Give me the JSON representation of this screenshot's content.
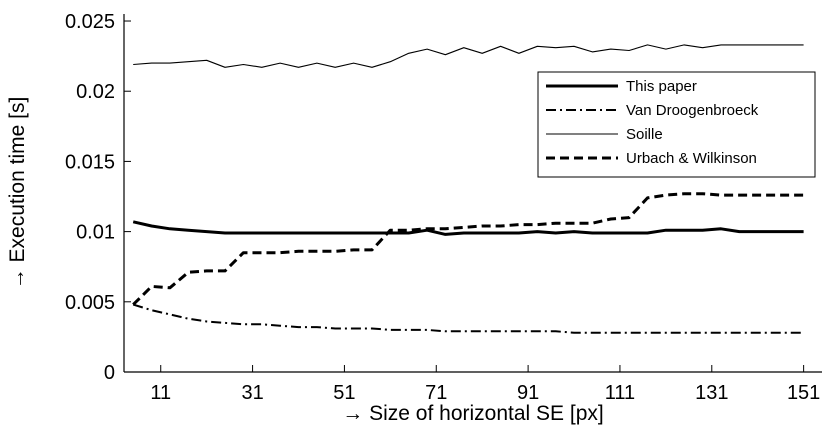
{
  "chart_data": {
    "type": "line",
    "xlabel": "→ Size of horizontal SE [px]",
    "ylabel": "→ Execution time [s]",
    "xlim": [
      3,
      155
    ],
    "ylim": [
      0,
      0.0255
    ],
    "xticks": [
      11,
      31,
      51,
      71,
      91,
      111,
      131,
      151
    ],
    "yticks": [
      0,
      0.005,
      0.01,
      0.015,
      0.02,
      0.025
    ],
    "ytick_labels": [
      "0",
      "0.005",
      "0.01",
      "0.015",
      "0.02",
      "0.025"
    ],
    "grid": false,
    "legend_position": "top-right",
    "x": [
      5,
      9,
      13,
      17,
      21,
      25,
      29,
      33,
      37,
      41,
      45,
      49,
      53,
      57,
      61,
      65,
      69,
      73,
      77,
      81,
      85,
      89,
      93,
      97,
      101,
      105,
      109,
      113,
      117,
      121,
      125,
      129,
      133,
      137,
      141,
      145,
      149,
      151
    ],
    "series": [
      {
        "name": "This paper",
        "style": "solid-thick",
        "values": [
          0.0107,
          0.0104,
          0.0102,
          0.0101,
          0.01,
          0.0099,
          0.0099,
          0.0099,
          0.0099,
          0.0099,
          0.0099,
          0.0099,
          0.0099,
          0.0099,
          0.0099,
          0.0099,
          0.0101,
          0.0098,
          0.0099,
          0.0099,
          0.0099,
          0.0099,
          0.01,
          0.0099,
          0.01,
          0.0099,
          0.0099,
          0.0099,
          0.0099,
          0.0101,
          0.0101,
          0.0101,
          0.0102,
          0.01,
          0.01,
          0.01,
          0.01,
          0.01
        ]
      },
      {
        "name": "Van Droogenbroeck",
        "style": "dashdot",
        "values": [
          0.0048,
          0.0044,
          0.0041,
          0.0038,
          0.0036,
          0.0035,
          0.0034,
          0.0034,
          0.0033,
          0.0032,
          0.0032,
          0.0031,
          0.0031,
          0.0031,
          0.003,
          0.003,
          0.003,
          0.0029,
          0.0029,
          0.0029,
          0.0029,
          0.0029,
          0.0029,
          0.0029,
          0.0028,
          0.0028,
          0.0028,
          0.0028,
          0.0028,
          0.0028,
          0.0028,
          0.0028,
          0.0028,
          0.0028,
          0.0028,
          0.0028,
          0.0028,
          0.0028
        ]
      },
      {
        "name": "Soille",
        "style": "solid-thin",
        "values": [
          0.0219,
          0.022,
          0.022,
          0.0221,
          0.0222,
          0.0217,
          0.0219,
          0.0217,
          0.022,
          0.0217,
          0.022,
          0.0217,
          0.022,
          0.0217,
          0.0221,
          0.0227,
          0.023,
          0.0226,
          0.0231,
          0.0227,
          0.0232,
          0.0227,
          0.0232,
          0.0231,
          0.0232,
          0.0228,
          0.023,
          0.0229,
          0.0233,
          0.023,
          0.0233,
          0.0231,
          0.0233,
          0.0233,
          0.0233,
          0.0233,
          0.0233,
          0.0233
        ]
      },
      {
        "name": "Urbach & Wilkinson",
        "style": "dashed",
        "values": [
          0.0048,
          0.0061,
          0.006,
          0.0071,
          0.0072,
          0.0072,
          0.0085,
          0.0085,
          0.0085,
          0.0086,
          0.0086,
          0.0086,
          0.0087,
          0.0087,
          0.0101,
          0.0101,
          0.0102,
          0.0102,
          0.0103,
          0.0104,
          0.0104,
          0.0105,
          0.0105,
          0.0106,
          0.0106,
          0.0106,
          0.0109,
          0.011,
          0.0124,
          0.0126,
          0.0127,
          0.0127,
          0.0126,
          0.0126,
          0.0126,
          0.0126,
          0.0126,
          0.0126
        ]
      }
    ]
  }
}
